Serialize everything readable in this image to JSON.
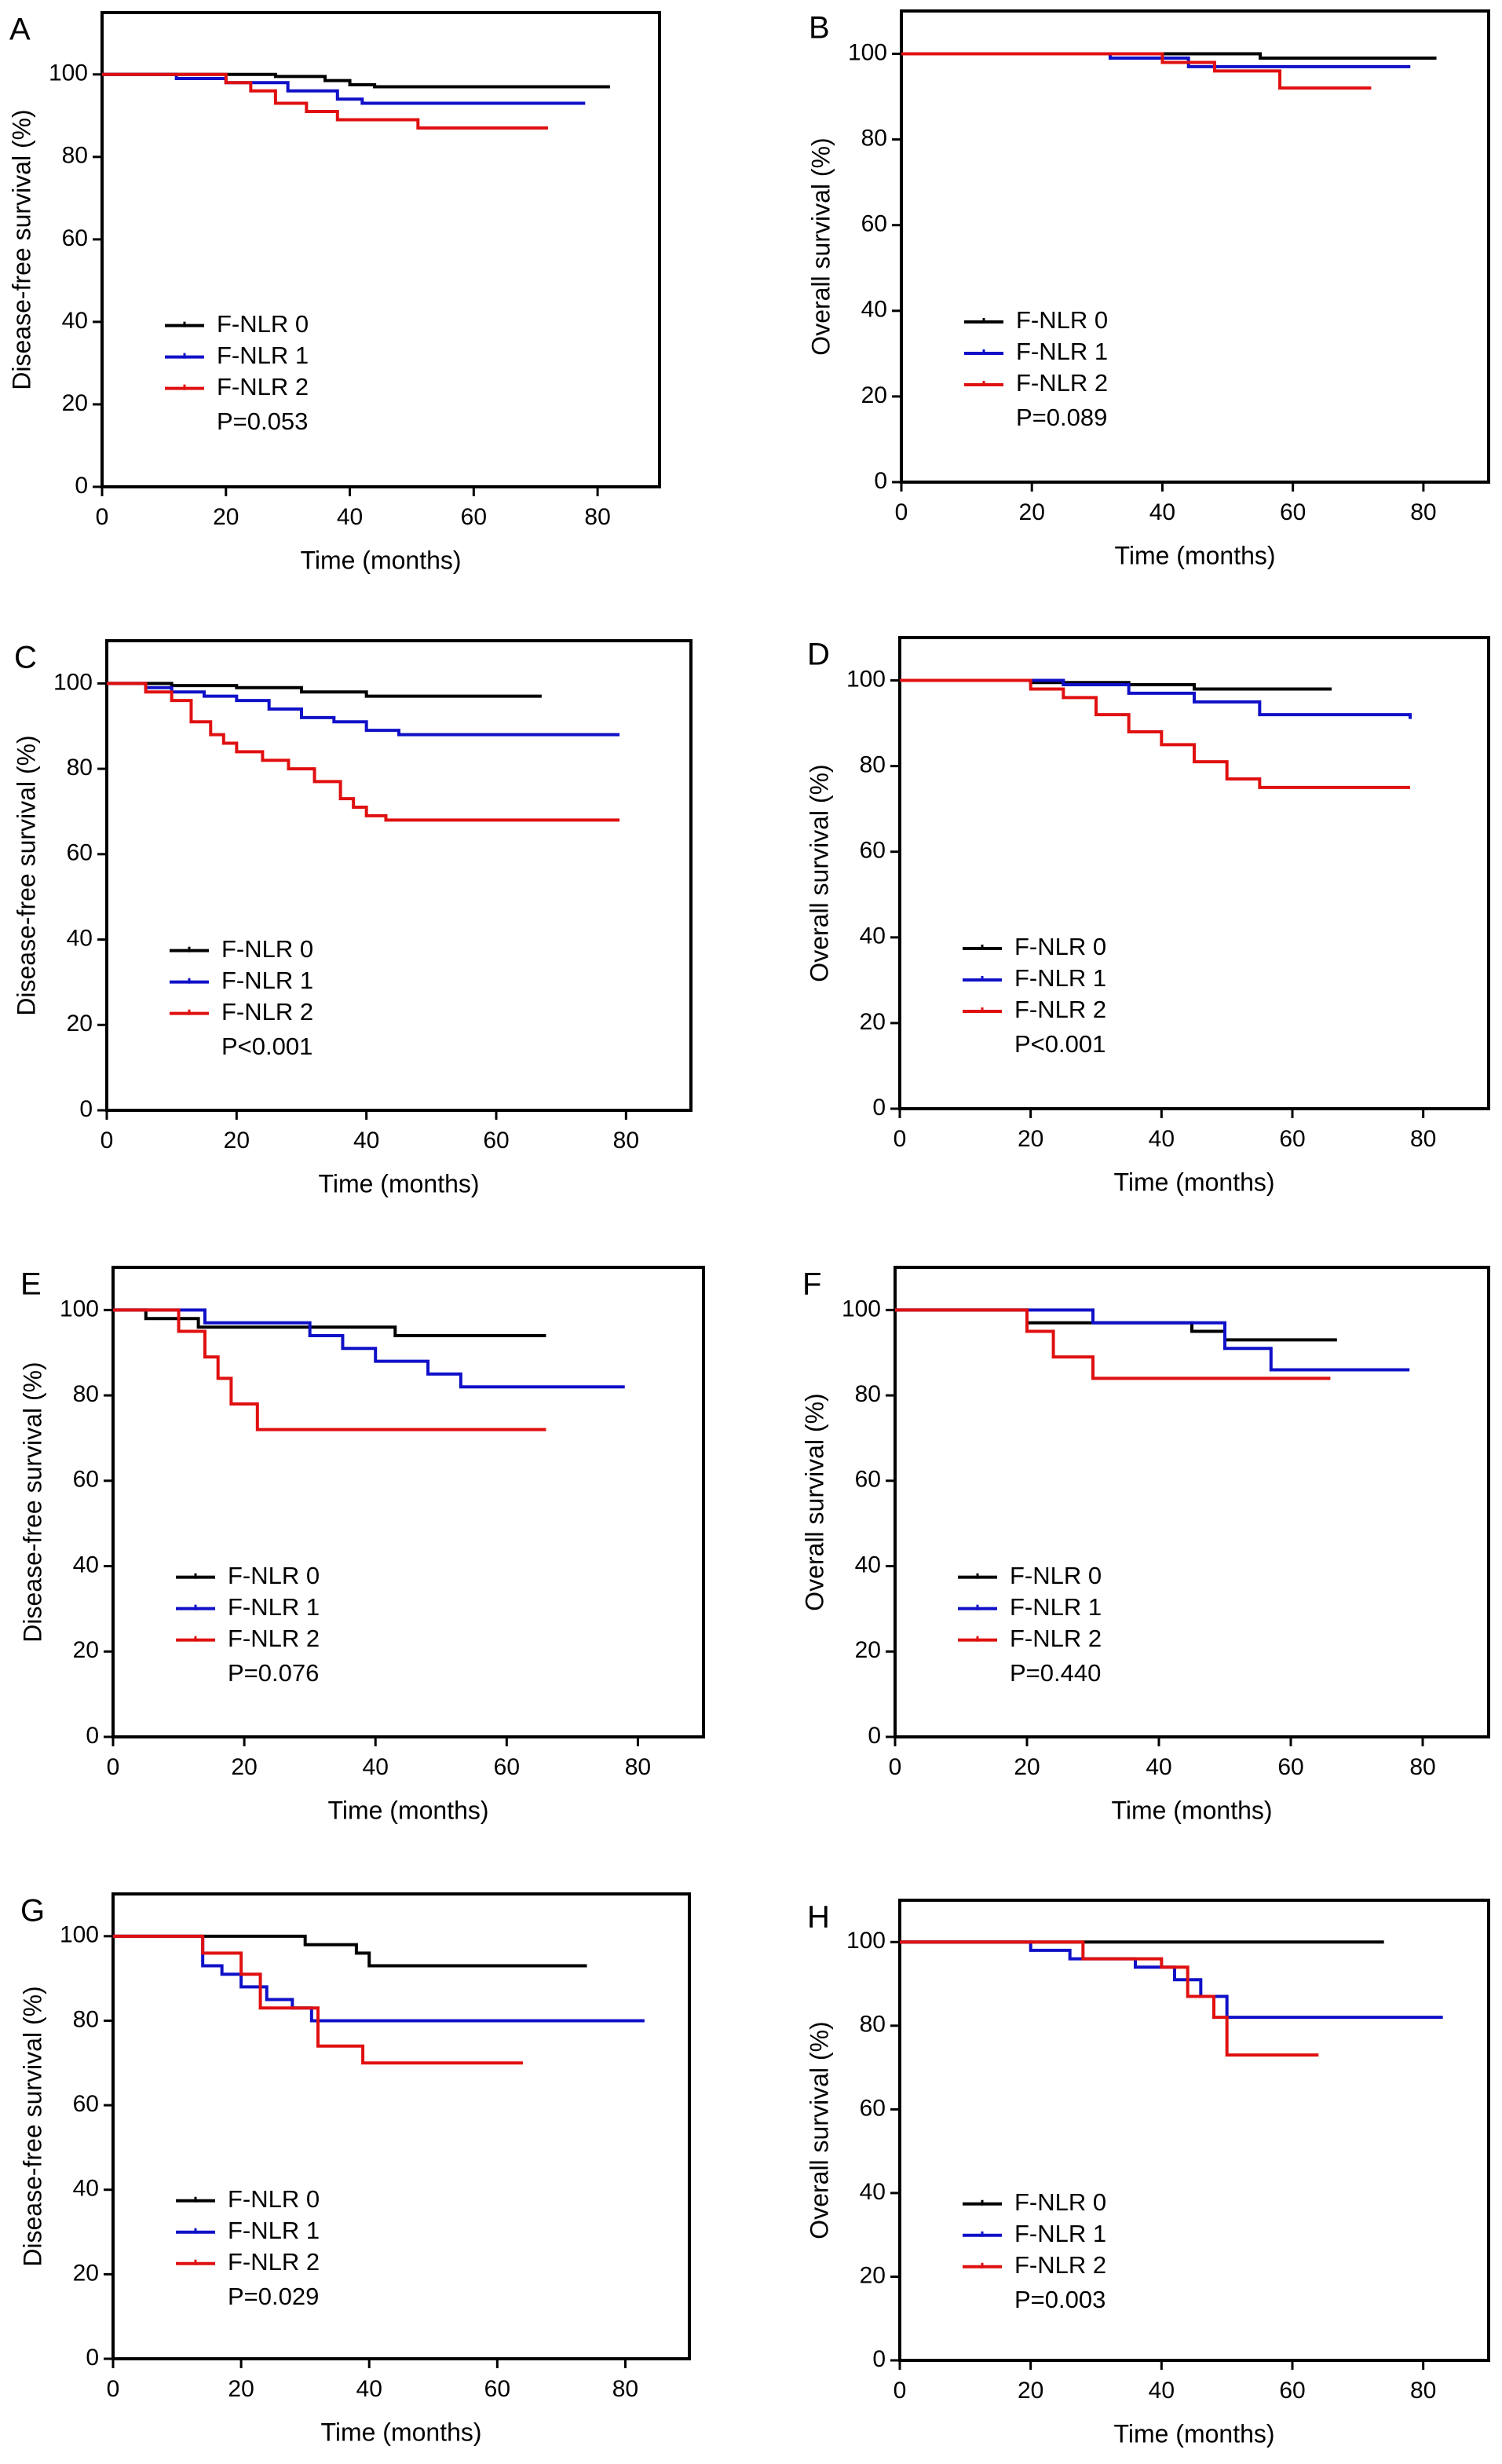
{
  "chart_data": [
    {
      "type": "line",
      "panel": "A",
      "ylabel": "Disease-free survival (%)",
      "xlabel": "Time (months)",
      "annotation": "P=0.053",
      "xlim": [
        0,
        90
      ],
      "ylim": [
        0,
        115
      ],
      "xticks": [
        0,
        20,
        40,
        60,
        80
      ],
      "yticks": [
        0,
        20,
        40,
        60,
        80,
        100
      ],
      "series": [
        {
          "name": "F-NLR 0",
          "color": "#000000",
          "x": [
            0,
            28,
            36,
            40,
            44,
            82
          ],
          "values": [
            100,
            99.5,
            98.5,
            97.5,
            97,
            97
          ]
        },
        {
          "name": "F-NLR 1",
          "color": "#1010c8",
          "x": [
            0,
            12,
            20,
            30,
            38,
            42,
            78
          ],
          "values": [
            100,
            99,
            98,
            96,
            94,
            93,
            93
          ]
        },
        {
          "name": "F-NLR 2",
          "color": "#e01010",
          "x": [
            0,
            20,
            24,
            28,
            33,
            38,
            51,
            72
          ],
          "values": [
            100,
            98,
            96,
            93,
            91,
            89,
            87,
            87
          ]
        }
      ]
    },
    {
      "type": "line",
      "panel": "B",
      "ylabel": "Overall survival (%)",
      "xlabel": "Time (months)",
      "annotation": "P=0.089",
      "xlim": [
        0,
        90
      ],
      "ylim": [
        0,
        110
      ],
      "xticks": [
        0,
        20,
        40,
        60,
        80
      ],
      "yticks": [
        0,
        20,
        40,
        60,
        80,
        100
      ],
      "series": [
        {
          "name": "F-NLR 0",
          "color": "#000000",
          "x": [
            0,
            55,
            82
          ],
          "values": [
            100,
            99,
            99
          ]
        },
        {
          "name": "F-NLR 1",
          "color": "#1010c8",
          "x": [
            0,
            32,
            44,
            78
          ],
          "values": [
            100,
            99,
            97,
            97
          ]
        },
        {
          "name": "F-NLR 2",
          "color": "#e01010",
          "x": [
            0,
            40,
            48,
            58,
            72
          ],
          "values": [
            100,
            98,
            96,
            92,
            92
          ]
        }
      ]
    },
    {
      "type": "line",
      "panel": "C",
      "ylabel": "Disease-free survival (%)",
      "xlabel": "Time (months)",
      "annotation": "P<0.001",
      "xlim": [
        0,
        90
      ],
      "ylim": [
        0,
        110
      ],
      "xticks": [
        0,
        20,
        40,
        60,
        80
      ],
      "yticks": [
        0,
        20,
        40,
        60,
        80,
        100
      ],
      "series": [
        {
          "name": "F-NLR 0",
          "color": "#000000",
          "x": [
            0,
            10,
            20,
            30,
            40,
            67
          ],
          "values": [
            100,
            99.5,
            99,
            98,
            97,
            97
          ]
        },
        {
          "name": "F-NLR 1",
          "color": "#1010c8",
          "x": [
            0,
            6,
            10,
            15,
            20,
            25,
            30,
            35,
            40,
            45,
            79
          ],
          "values": [
            100,
            99,
            98,
            97,
            96,
            94,
            92,
            91,
            89,
            88,
            88
          ]
        },
        {
          "name": "F-NLR 2",
          "color": "#e01010",
          "x": [
            0,
            6,
            10,
            13,
            16,
            18,
            20,
            24,
            28,
            32,
            36,
            38,
            40,
            43,
            79
          ],
          "values": [
            100,
            98,
            96,
            91,
            88,
            86,
            84,
            82,
            80,
            77,
            73,
            71,
            69,
            68,
            68
          ]
        }
      ]
    },
    {
      "type": "line",
      "panel": "D",
      "ylabel": "Overall survival (%)",
      "xlabel": "Time (months)",
      "annotation": "P<0.001",
      "xlim": [
        0,
        90
      ],
      "ylim": [
        0,
        110
      ],
      "xticks": [
        0,
        20,
        40,
        60,
        80
      ],
      "yticks": [
        0,
        20,
        40,
        60,
        80,
        100
      ],
      "series": [
        {
          "name": "F-NLR 0",
          "color": "#000000",
          "x": [
            0,
            20,
            35,
            45,
            66
          ],
          "values": [
            100,
            99.5,
            99,
            98,
            98
          ]
        },
        {
          "name": "F-NLR 1",
          "color": "#1010c8",
          "x": [
            0,
            25,
            35,
            45,
            55,
            78
          ],
          "values": [
            100,
            99,
            97,
            95,
            92,
            91
          ]
        },
        {
          "name": "F-NLR 2",
          "color": "#e01010",
          "x": [
            0,
            20,
            25,
            30,
            35,
            40,
            45,
            50,
            55,
            78
          ],
          "values": [
            100,
            98,
            96,
            92,
            88,
            85,
            81,
            77,
            75,
            75
          ]
        }
      ]
    },
    {
      "type": "line",
      "panel": "E",
      "ylabel": "Disease-free survival (%)",
      "xlabel": "Time (months)",
      "annotation": "P=0.076",
      "xlim": [
        0,
        90
      ],
      "ylim": [
        0,
        110
      ],
      "xticks": [
        0,
        20,
        40,
        60,
        80
      ],
      "yticks": [
        0,
        20,
        40,
        60,
        80,
        100
      ],
      "series": [
        {
          "name": "F-NLR 0",
          "color": "#000000",
          "x": [
            0,
            5,
            13,
            43,
            66
          ],
          "values": [
            100,
            98,
            96,
            94,
            94
          ]
        },
        {
          "name": "F-NLR 1",
          "color": "#1010c8",
          "x": [
            0,
            14,
            30,
            35,
            40,
            48,
            53,
            78
          ],
          "values": [
            100,
            97,
            94,
            91,
            88,
            85,
            82,
            82
          ]
        },
        {
          "name": "F-NLR 2",
          "color": "#e01010",
          "x": [
            0,
            10,
            14,
            16,
            18,
            22,
            66
          ],
          "values": [
            100,
            95,
            89,
            84,
            78,
            72,
            72
          ]
        }
      ]
    },
    {
      "type": "line",
      "panel": "F",
      "ylabel": "Overall survival (%)",
      "xlabel": "Time (months)",
      "annotation": "P=0.440",
      "xlim": [
        0,
        90
      ],
      "ylim": [
        0,
        110
      ],
      "xticks": [
        0,
        20,
        40,
        60,
        80
      ],
      "yticks": [
        0,
        20,
        40,
        60,
        80,
        100
      ],
      "series": [
        {
          "name": "F-NLR 0",
          "color": "#000000",
          "x": [
            0,
            20,
            45,
            50,
            67
          ],
          "values": [
            100,
            97,
            95,
            93,
            93
          ]
        },
        {
          "name": "F-NLR 1",
          "color": "#1010c8",
          "x": [
            0,
            30,
            50,
            57,
            78
          ],
          "values": [
            100,
            97,
            91,
            86,
            86
          ]
        },
        {
          "name": "F-NLR 2",
          "color": "#e01010",
          "x": [
            0,
            20,
            24,
            30,
            66
          ],
          "values": [
            100,
            95,
            89,
            84,
            84
          ]
        }
      ]
    },
    {
      "type": "line",
      "panel": "G",
      "ylabel": "Disease-free survival (%)",
      "xlabel": "Time (months)",
      "annotation": "P=0.029",
      "xlim": [
        0,
        90
      ],
      "ylim": [
        0,
        110
      ],
      "xticks": [
        0,
        20,
        40,
        60,
        80
      ],
      "yticks": [
        0,
        20,
        40,
        60,
        80,
        100
      ],
      "series": [
        {
          "name": "F-NLR 0",
          "color": "#000000",
          "x": [
            0,
            30,
            38,
            40,
            74
          ],
          "values": [
            100,
            98,
            96,
            93,
            93
          ]
        },
        {
          "name": "F-NLR 1",
          "color": "#1010c8",
          "x": [
            0,
            14,
            17,
            20,
            24,
            28,
            31,
            83
          ],
          "values": [
            100,
            93,
            91,
            88,
            85,
            83,
            80,
            80
          ]
        },
        {
          "name": "F-NLR 2",
          "color": "#e01010",
          "x": [
            0,
            14,
            20,
            23,
            32,
            39,
            64
          ],
          "values": [
            100,
            96,
            91,
            83,
            74,
            70,
            70
          ]
        }
      ]
    },
    {
      "type": "line",
      "panel": "H",
      "ylabel": "Overall survival (%)",
      "xlabel": "Time (months)",
      "annotation": "P=0.003",
      "xlim": [
        0,
        90
      ],
      "ylim": [
        0,
        110
      ],
      "xticks": [
        0,
        20,
        40,
        60,
        80
      ],
      "yticks": [
        0,
        20,
        40,
        60,
        80,
        100
      ],
      "series": [
        {
          "name": "F-NLR 0",
          "color": "#000000",
          "x": [
            0,
            74
          ],
          "values": [
            100,
            100
          ]
        },
        {
          "name": "F-NLR 1",
          "color": "#1010c8",
          "x": [
            0,
            20,
            26,
            36,
            42,
            46,
            50,
            83
          ],
          "values": [
            100,
            98,
            96,
            94,
            91,
            87,
            82,
            82
          ]
        },
        {
          "name": "F-NLR 2",
          "color": "#e01010",
          "x": [
            0,
            28,
            40,
            44,
            48,
            50,
            64
          ],
          "values": [
            100,
            96,
            94,
            87,
            82,
            73,
            73
          ]
        }
      ]
    }
  ]
}
